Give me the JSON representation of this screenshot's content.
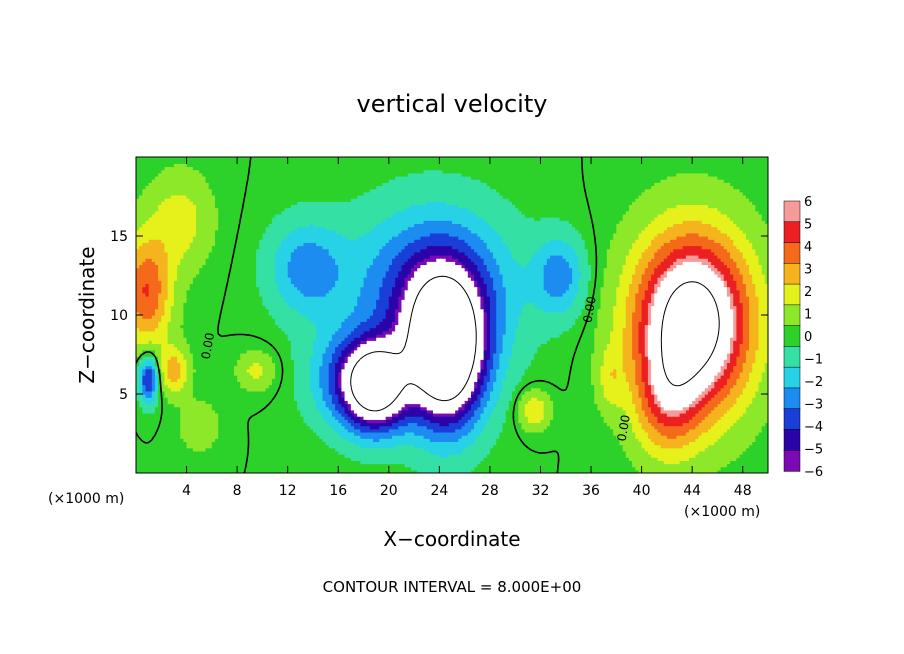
{
  "chart_data": {
    "type": "heatmap",
    "title": "vertical velocity",
    "xlabel": "X−coordinate",
    "ylabel": "Z−coordinate",
    "x_unit": "(×1000 m)",
    "z_unit": "(×1000 m)",
    "xlim": [
      0,
      50
    ],
    "ylim": [
      0,
      20
    ],
    "x_ticks": [
      4,
      8,
      12,
      16,
      20,
      24,
      28,
      32,
      36,
      40,
      44,
      48
    ],
    "y_ticks": [
      5,
      10,
      15
    ],
    "x_tick_labels": [
      "4",
      "8",
      "12",
      "16",
      "20",
      "24",
      "28",
      "32",
      "36",
      "40",
      "44",
      "48"
    ],
    "y_tick_labels": [
      "5",
      "10",
      "15"
    ],
    "colorbar": {
      "min": -6,
      "max": 6,
      "ticks": [
        "6",
        "5",
        "4",
        "3",
        "2",
        "1",
        "0",
        "−1",
        "−2",
        "−3",
        "−4",
        "−5",
        "−6"
      ]
    },
    "contour_labels": [
      "0.00",
      "0.00",
      "0.00"
    ],
    "grid": false,
    "legend": "right",
    "features": [
      {
        "x": 24.5,
        "z": 7.5,
        "sx": 3.0,
        "sz": 4.5,
        "amp": -11
      },
      {
        "x": 19.0,
        "z": 5.5,
        "sx": 2.5,
        "sz": 2.8,
        "amp": -9
      },
      {
        "x": 23.5,
        "z": 11.5,
        "sx": 6.0,
        "sz": 5.0,
        "amp": -5
      },
      {
        "x": 13.5,
        "z": 13.0,
        "sx": 3.0,
        "sz": 3.0,
        "amp": -3
      },
      {
        "x": 33.5,
        "z": 12.5,
        "sx": 2.0,
        "sz": 2.5,
        "amp": -3
      },
      {
        "x": 16.5,
        "z": 6.0,
        "sx": 3.0,
        "sz": 3.0,
        "amp": -3
      },
      {
        "x": 44.0,
        "z": 9.5,
        "sx": 4.5,
        "sz": 5.5,
        "amp": 10
      },
      {
        "x": 42.0,
        "z": 4.5,
        "sx": 2.5,
        "sz": 3.5,
        "amp": 3
      },
      {
        "x": 0.8,
        "z": 11.5,
        "sx": 2.0,
        "sz": 3.5,
        "amp": 4.5
      },
      {
        "x": 3.5,
        "z": 16.0,
        "sx": 2.5,
        "sz": 3.0,
        "amp": 2.0
      },
      {
        "x": 3.0,
        "z": 6.5,
        "sx": 1.2,
        "sz": 1.5,
        "amp": 3.0
      },
      {
        "x": 1.0,
        "z": 6.0,
        "sx": 0.8,
        "sz": 1.5,
        "amp": -5
      },
      {
        "x": 31.5,
        "z": 4.0,
        "sx": 1.2,
        "sz": 1.2,
        "amp": 2.5
      },
      {
        "x": 9.5,
        "z": 6.5,
        "sx": 1.5,
        "sz": 1.2,
        "amp": 1.8
      },
      {
        "x": 5.0,
        "z": 3.0,
        "sx": 1.5,
        "sz": 1.5,
        "amp": 1.5
      },
      {
        "x": 37.5,
        "z": 6.0,
        "sx": 1.0,
        "sz": 2.0,
        "amp": 1.5
      }
    ]
  },
  "footer": "CONTOUR INTERVAL =  8.000E+00"
}
